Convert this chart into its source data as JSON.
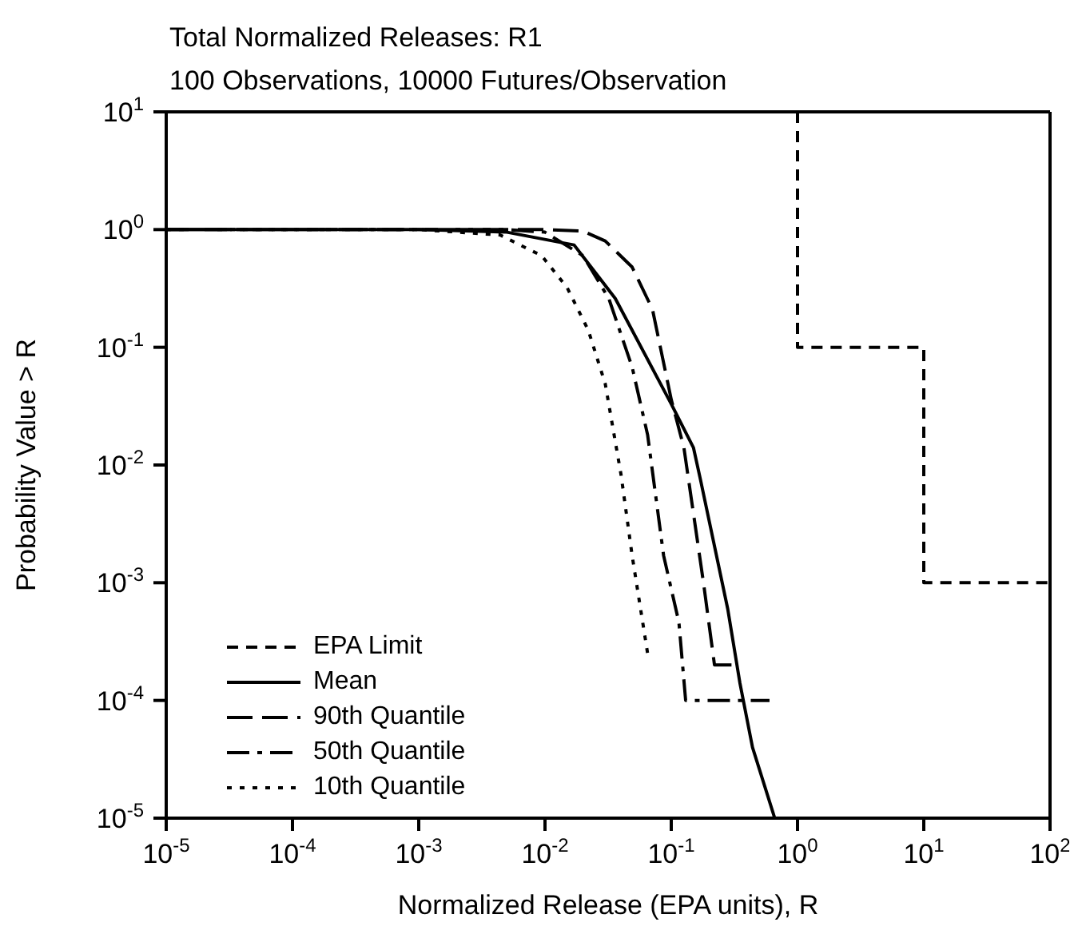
{
  "chart_data": {
    "type": "line",
    "title": "Total Normalized Releases: R1",
    "subtitle": "100 Observations, 10000 Futures/Observation",
    "xlabel": "Normalized Release (EPA units), R",
    "ylabel": "Probability Value > R",
    "log": "xy",
    "legend": "bottom left",
    "marker": "none",
    "xlim": [
      1e-05,
      100
    ],
    "ylim": [
      1e-05,
      10
    ],
    "xticks": [
      {
        "value": 1e-05,
        "label": "10$^{-5}$"
      },
      {
        "value": 0.0001,
        "label": "10$^{-4}$"
      },
      {
        "value": 0.001,
        "label": "10$^{-3}$"
      },
      {
        "value": 0.01,
        "label": "10$^{-2}$"
      },
      {
        "value": 0.1,
        "label": "10$^{-1}$"
      },
      {
        "value": 1,
        "label": "10$^{0}$"
      },
      {
        "value": 10,
        "label": "10$^{1}$"
      },
      {
        "value": 100,
        "label": "10$^{2}$"
      }
    ],
    "yticks": [
      {
        "value": 1e-05,
        "label": "10$^{-5}$"
      },
      {
        "value": 0.0001,
        "label": "10$^{-4}$"
      },
      {
        "value": 0.001,
        "label": "10$^{-3}$"
      },
      {
        "value": 0.01,
        "label": "10$^{-2}$"
      },
      {
        "value": 0.1,
        "label": "10$^{-1}$"
      },
      {
        "value": 1,
        "label": "10$^{0}$"
      },
      {
        "value": 10,
        "label": "10$^{1}$"
      }
    ],
    "series": [
      {
        "name": "EPA Limit",
        "color": "#000000",
        "line_style": "dashed",
        "x": [
          1,
          1,
          10,
          10,
          100
        ],
        "values": [
          10,
          0.1,
          0.1,
          0.001,
          0.001
        ]
      },
      {
        "name": "Mean",
        "color": "#000000",
        "line_style": "solid",
        "x": [
          1e-05,
          0.001,
          0.005,
          0.017,
          0.036,
          0.1,
          0.15,
          0.17,
          0.28,
          0.35,
          0.44,
          0.66
        ],
        "values": [
          1,
          1,
          0.95,
          0.74,
          0.26,
          0.033,
          0.014,
          0.0076,
          0.0006,
          0.00014,
          4e-05,
          1e-05
        ]
      },
      {
        "name": "90th Quantile",
        "color": "#000000",
        "line_style": "longdash",
        "x": [
          1e-05,
          0.01,
          0.02,
          0.03,
          0.049,
          0.071,
          0.1,
          0.126,
          0.18,
          0.22,
          0.3
        ],
        "values": [
          1,
          1,
          0.97,
          0.8,
          0.48,
          0.21,
          0.036,
          0.014,
          0.001,
          0.0002,
          0.0002
        ]
      },
      {
        "name": "50th Quantile",
        "color": "#000000",
        "line_style": "dashdot",
        "x": [
          1e-05,
          0.005,
          0.01,
          0.02,
          0.032,
          0.049,
          0.065,
          0.087,
          0.115,
          0.13,
          0.6
        ],
        "values": [
          1,
          1,
          0.95,
          0.6,
          0.26,
          0.068,
          0.018,
          0.0017,
          0.00046,
          0.0001,
          0.0001
        ]
      },
      {
        "name": "10th Quantile",
        "color": "#000000",
        "line_style": "dotted",
        "x": [
          1e-05,
          0.001,
          0.0044,
          0.0094,
          0.015,
          0.022,
          0.03,
          0.04,
          0.049,
          0.065
        ],
        "values": [
          1,
          1,
          0.9,
          0.6,
          0.32,
          0.14,
          0.049,
          0.0083,
          0.0017,
          0.00025
        ]
      }
    ]
  }
}
